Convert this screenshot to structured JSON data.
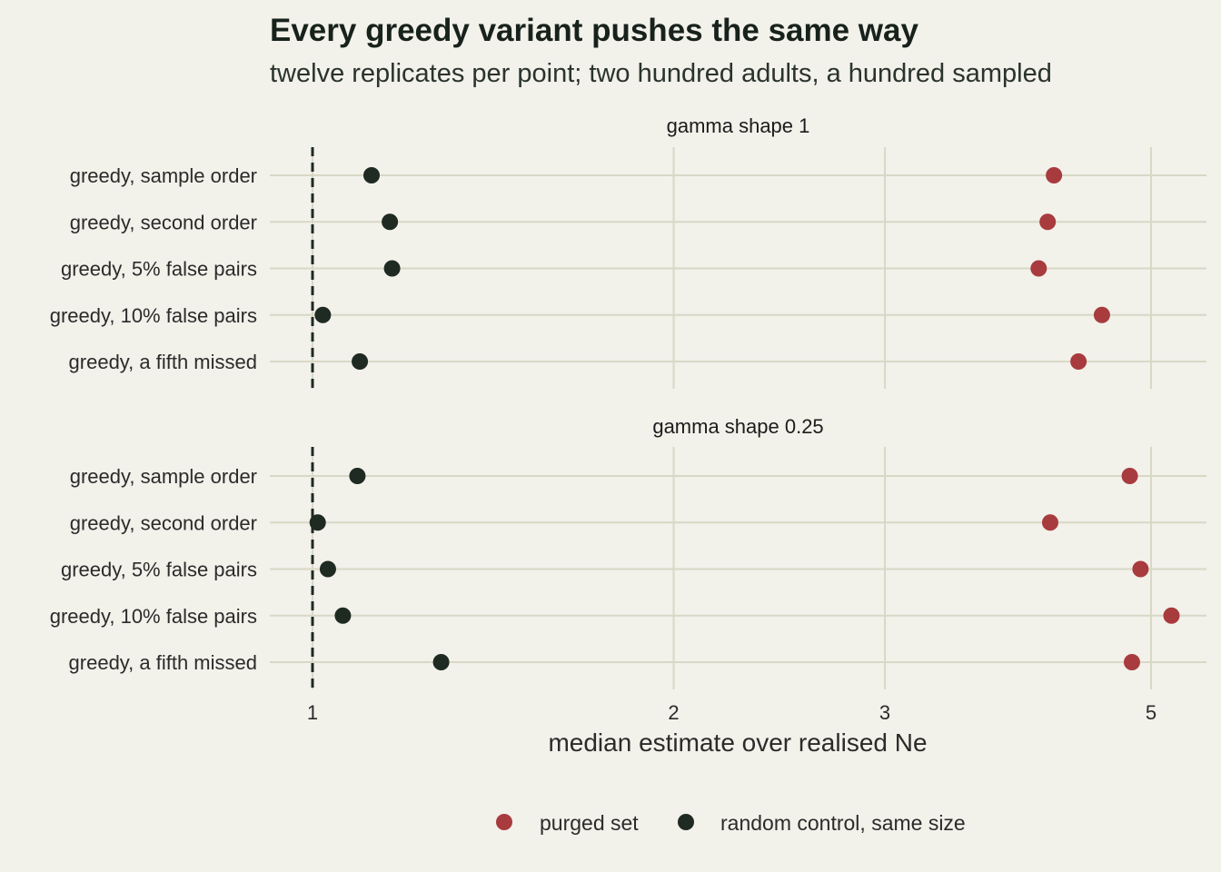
{
  "chart_data": {
    "type": "scatter",
    "title": "Every greedy variant pushes the same way",
    "subtitle": "twelve replicates per point; two hundred adults, a hundred sampled",
    "xlabel": "median estimate over realised Ne",
    "x_scale": "log",
    "xlim": [
      0.87,
      5.5
    ],
    "x_ticks": [
      1,
      2,
      3,
      5
    ],
    "x_tick_labels": [
      "1",
      "2",
      "3",
      "5"
    ],
    "reference_line": {
      "x": 1,
      "style": "dashed"
    },
    "grid": true,
    "legend_position": "bottom",
    "categories": [
      "greedy, sample order",
      "greedy, second order",
      "greedy, 5% false pairs",
      "greedy, 10% false pairs",
      "greedy, a fifth missed"
    ],
    "series_meta": [
      {
        "name": "purged set",
        "color": "#a83b3e"
      },
      {
        "name": "random control, same size",
        "color": "#1e2a22"
      }
    ],
    "panels": [
      {
        "label": "gamma shape 1",
        "series": [
          {
            "name": "purged set",
            "values": [
              4.15,
              4.1,
              4.03,
              4.55,
              4.35
            ]
          },
          {
            "name": "random control, same size",
            "values": [
              1.12,
              1.16,
              1.165,
              1.02,
              1.095
            ]
          }
        ]
      },
      {
        "label": "gamma shape 0.25",
        "series": [
          {
            "name": "purged set",
            "values": [
              4.8,
              4.12,
              4.9,
              5.2,
              4.82
            ]
          },
          {
            "name": "random control, same size",
            "values": [
              1.09,
              1.01,
              1.03,
              1.06,
              1.28
            ]
          }
        ]
      }
    ]
  }
}
